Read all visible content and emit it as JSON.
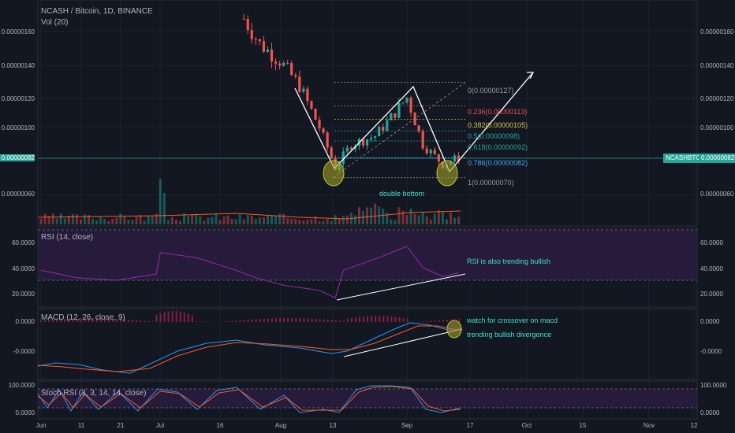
{
  "header": {
    "symbol": "NCASH / Bitcoin, 1D, BINANCE",
    "volume": "Vol (20)",
    "rsi": "RSI (14, close)",
    "macd": "MACD (12, 26, close, 9)",
    "stoch": "Stoch RSI (3, 3, 14, 14, close)"
  },
  "price_axis": [
    "0.00000160",
    "0.00000140",
    "0.00000120",
    "0.00000100",
    "0.00000082",
    "0.00000060"
  ],
  "price_axis_right": [
    "0.00000160",
    "0.00000140",
    "0.00000120",
    "0.00000100",
    "0.00000082",
    "0.00000060"
  ],
  "current": {
    "label": "NCASHBTC",
    "value": "0.00000082",
    "color": "#26a69a"
  },
  "rsi_axis": [
    "60.0000",
    "40.0000",
    "20.0000"
  ],
  "macd_axis": [
    "0.0000",
    "-0.0000"
  ],
  "stoch_axis": [
    "100.0000",
    "0.0000"
  ],
  "x_ticks": [
    "Jun",
    "11",
    "21",
    "Jul",
    "16",
    "Aug",
    "13",
    "Sep",
    "17",
    "Oct",
    "15",
    "Nov",
    "12"
  ],
  "fib_levels": [
    {
      "text": "0(0.00000127)",
      "color": "#9598a1"
    },
    {
      "text": "0.236(0.00000113)",
      "color": "#ef5350"
    },
    {
      "text": "0.382(0.00000105)",
      "color": "#c7c93f"
    },
    {
      "text": "0.5(0.00000098)",
      "color": "#26a69a"
    },
    {
      "text": "0.618(0.00000092)",
      "color": "#26a69a"
    },
    {
      "text": "0.786(0.00000082)",
      "color": "#42a5f5"
    },
    {
      "text": "1(0.00000070)",
      "color": "#9598a1"
    }
  ],
  "annotations": {
    "double_bottom": "double bottom",
    "rsi_note": "RSI is also trending bullish",
    "macd_note1": "watch for crossover on macd",
    "macd_note2": "trending bullish divergence"
  },
  "colors": {
    "up": "#26a69a",
    "down": "#ef5350",
    "rsi": "#9c27b0",
    "macd": "#2196f3",
    "signal": "#ff5722",
    "note": "#40e0d0"
  },
  "chart_data": {
    "type": "candlestick",
    "title": "NCASH / Bitcoin, 1D, BINANCE",
    "ylim": [
      4.5e-07,
      1.7e-06
    ],
    "x_range": [
      "2018-06-01",
      "2018-11-15"
    ],
    "price_path": [
      {
        "date": "2018-07-22",
        "close": 1.65e-06
      },
      {
        "date": "2018-07-26",
        "close": 1.5e-06
      },
      {
        "date": "2018-07-31",
        "close": 1.4e-06
      },
      {
        "date": "2018-08-05",
        "close": 1.25e-06
      },
      {
        "date": "2018-08-10",
        "close": 1e-06
      },
      {
        "date": "2018-08-14",
        "close": 7.6e-07
      },
      {
        "date": "2018-08-18",
        "close": 9e-07
      },
      {
        "date": "2018-08-24",
        "close": 9.5e-07
      },
      {
        "date": "2018-08-28",
        "close": 1.06e-06
      },
      {
        "date": "2018-09-01",
        "close": 1.18e-06
      },
      {
        "date": "2018-09-05",
        "close": 9e-07
      },
      {
        "date": "2018-09-10",
        "close": 7.8e-07
      },
      {
        "date": "2018-09-14",
        "close": 8.2e-07
      }
    ],
    "fibonacci": [
      {
        "level": 0,
        "price": 1.27e-06
      },
      {
        "level": 0.236,
        "price": 1.13e-06
      },
      {
        "level": 0.382,
        "price": 1.05e-06
      },
      {
        "level": 0.5,
        "price": 9.8e-07
      },
      {
        "level": 0.618,
        "price": 9.2e-07
      },
      {
        "level": 0.786,
        "price": 8.2e-07
      },
      {
        "level": 1,
        "price": 7e-07
      }
    ],
    "rsi": [
      {
        "date": "2018-06-01",
        "value": 38
      },
      {
        "date": "2018-06-10",
        "value": 32
      },
      {
        "date": "2018-06-20",
        "value": 30
      },
      {
        "date": "2018-06-30",
        "value": 35
      },
      {
        "date": "2018-07-01",
        "value": 52
      },
      {
        "date": "2018-07-10",
        "value": 48
      },
      {
        "date": "2018-07-20",
        "value": 38
      },
      {
        "date": "2018-07-25",
        "value": 32
      },
      {
        "date": "2018-08-01",
        "value": 26
      },
      {
        "date": "2018-08-10",
        "value": 22
      },
      {
        "date": "2018-08-14",
        "value": 16
      },
      {
        "date": "2018-08-16",
        "value": 38
      },
      {
        "date": "2018-08-25",
        "value": 48
      },
      {
        "date": "2018-09-01",
        "value": 57
      },
      {
        "date": "2018-09-05",
        "value": 40
      },
      {
        "date": "2018-09-10",
        "value": 33
      },
      {
        "date": "2018-09-14",
        "value": 36
      }
    ],
    "rsi_levels": [
      70,
      30
    ]
  }
}
